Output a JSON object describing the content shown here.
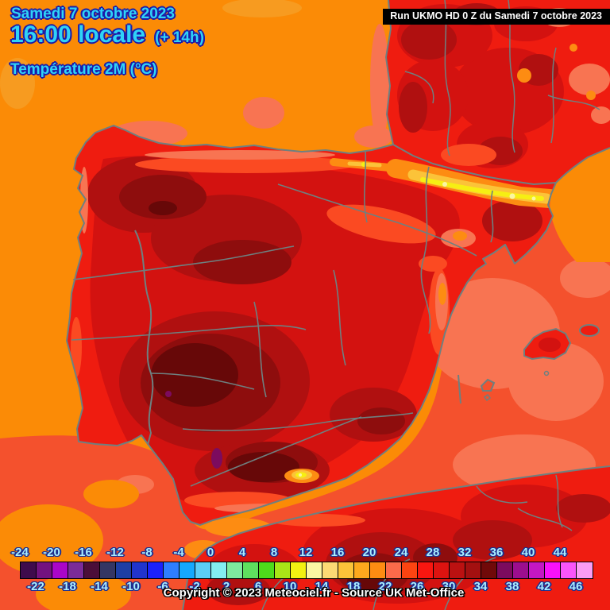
{
  "header": {
    "date_line": "Samedi 7 octobre 2023",
    "time_line": "16:00 locale",
    "offset": "(+ 14h)",
    "variable": "Température 2M (°C)"
  },
  "run_info": {
    "text": "Run UKMO HD 0 Z du Samedi 7 octobre 2023"
  },
  "footer": {
    "copyright": "Copyright © 2023 Meteociel.fr - Source UK Met-Office"
  },
  "colors": {
    "header_text": "#2fd3f7",
    "header_outline": "#1c1ca8",
    "legend_label": "#aaeeff",
    "legend_label_outline": "#1e2f8f",
    "runbox_bg": "#000000",
    "runbox_text": "#ffffff",
    "copyright_text": "#ffffff",
    "copyright_outline": "#000000"
  },
  "legend": {
    "unit": "°C",
    "min": -24,
    "max": 48,
    "step": 2,
    "top_labels": [
      "-24",
      "-20",
      "-16",
      "-12",
      "-8",
      "-4",
      "0",
      "4",
      "8",
      "12",
      "16",
      "20",
      "24",
      "28",
      "32",
      "36",
      "40",
      "44"
    ],
    "bottom_labels": [
      "-22",
      "-18",
      "-14",
      "-10",
      "-6",
      "-2",
      "2",
      "6",
      "10",
      "14",
      "18",
      "22",
      "26",
      "30",
      "34",
      "38",
      "42",
      "46"
    ],
    "cell_colors": [
      "#3f0b4c",
      "#73127f",
      "#aa06c8",
      "#7b2b99",
      "#4b0e39",
      "#343663",
      "#1d3ea4",
      "#2134cd",
      "#1b21fb",
      "#2e7eff",
      "#15a8fd",
      "#5bcdf6",
      "#83eef1",
      "#7eea9e",
      "#5fe05f",
      "#4eda1b",
      "#a9e517",
      "#f3f112",
      "#fbf6a2",
      "#fbd974",
      "#fbc339",
      "#fda81d",
      "#fd8c12",
      "#fb6a4a",
      "#fc4411",
      "#f81610",
      "#dd1310",
      "#bb1111",
      "#a31010",
      "#700909",
      "#7c0b5e",
      "#9c0e8e",
      "#c417c4",
      "#f911f9",
      "#f955f9",
      "#fa9cf3"
    ]
  },
  "map_colors": {
    "sea_orange": "#fb8b06",
    "sea_orange2": "#f79b20",
    "sea_warm": "#f4512d",
    "salmon": "#f87452",
    "orange": "#fd8c12",
    "orange_red": "#fb4a22",
    "land_red": "#ef1c10",
    "red2": "#d31210",
    "red3": "#b01010",
    "red4": "#8e0d0d",
    "maroon": "#670808",
    "purple": "#7c0b5e",
    "yellow_orange": "#fbc339",
    "yellow": "#f6ef13",
    "pale_yellow": "#fbf6a2",
    "coast": "#6e8080"
  }
}
